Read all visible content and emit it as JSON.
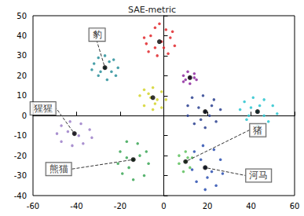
{
  "chart_data": {
    "type": "scatter",
    "title": "SAE-metric",
    "xlim": [
      -60,
      60
    ],
    "xticks": [
      -60,
      -40,
      -20,
      0,
      20,
      40,
      60
    ],
    "ylim": [
      -40,
      50
    ],
    "yticks": [
      -40,
      -30,
      -20,
      -10,
      0,
      10,
      20,
      30,
      40,
      50
    ],
    "grid": false,
    "series": [
      {
        "color": "#e0262a",
        "values": [
          [
            -8,
            36
          ],
          [
            -6,
            40
          ],
          [
            -4,
            44
          ],
          [
            -2,
            46
          ],
          [
            1,
            43
          ],
          [
            3,
            39
          ],
          [
            5,
            35
          ],
          [
            2,
            31
          ],
          [
            -3,
            30
          ],
          [
            -7,
            32
          ],
          [
            -1,
            37
          ],
          [
            -4,
            34
          ],
          [
            4,
            42
          ],
          [
            0,
            34
          ],
          [
            -9,
            39
          ]
        ]
      },
      {
        "color": "#2a8f9a",
        "values": [
          [
            -32,
            26
          ],
          [
            -30,
            29
          ],
          [
            -27,
            30
          ],
          [
            -23,
            28
          ],
          [
            -21,
            24
          ],
          [
            -22,
            20
          ],
          [
            -26,
            18
          ],
          [
            -30,
            20
          ],
          [
            -33,
            23
          ],
          [
            -27,
            24
          ],
          [
            -25,
            27
          ],
          [
            -29,
            22
          ],
          [
            -24,
            22
          ]
        ]
      },
      {
        "color": "#8e2a9f",
        "values": [
          [
            9,
            20
          ],
          [
            11,
            22
          ],
          [
            14,
            21
          ],
          [
            15,
            18
          ],
          [
            12,
            16
          ],
          [
            9,
            17
          ],
          [
            12,
            19
          ],
          [
            10,
            18
          ],
          [
            14,
            19
          ]
        ]
      },
      {
        "color": "#d4d42a",
        "values": [
          [
            -11,
            10
          ],
          [
            -9,
            13
          ],
          [
            -5,
            14
          ],
          [
            -1,
            12
          ],
          [
            1,
            8
          ],
          [
            -1,
            4
          ],
          [
            -5,
            3
          ],
          [
            -9,
            5
          ],
          [
            -6,
            9
          ],
          [
            -3,
            8
          ],
          [
            -7,
            11
          ],
          [
            -4,
            6
          ]
        ]
      },
      {
        "color": "#2ac4cf",
        "values": [
          [
            35,
            3
          ],
          [
            37,
            7
          ],
          [
            41,
            9
          ],
          [
            46,
            8
          ],
          [
            50,
            5
          ],
          [
            52,
            1
          ],
          [
            48,
            -3
          ],
          [
            43,
            -5
          ],
          [
            38,
            -2
          ],
          [
            43,
            2
          ],
          [
            40,
            4
          ],
          [
            46,
            0
          ],
          [
            44,
            5
          ],
          [
            39,
            0
          ]
        ]
      },
      {
        "color": "#2a3f8f",
        "values": [
          [
            11,
            5
          ],
          [
            13,
            9
          ],
          [
            18,
            10
          ],
          [
            23,
            8
          ],
          [
            26,
            3
          ],
          [
            24,
            -3
          ],
          [
            19,
            -6
          ],
          [
            14,
            -4
          ],
          [
            11,
            0
          ],
          [
            19,
            2
          ],
          [
            16,
            4
          ],
          [
            21,
            0
          ],
          [
            17,
            -2
          ],
          [
            22,
            5
          ]
        ]
      },
      {
        "color": "#9b7ec8",
        "values": [
          [
            -49,
            -9
          ],
          [
            -47,
            -5
          ],
          [
            -43,
            -3
          ],
          [
            -38,
            -4
          ],
          [
            -34,
            -7
          ],
          [
            -33,
            -11
          ],
          [
            -37,
            -14
          ],
          [
            -42,
            -15
          ],
          [
            -47,
            -13
          ],
          [
            -41,
            -9
          ],
          [
            -44,
            -8
          ],
          [
            -39,
            -10
          ]
        ]
      },
      {
        "color": "#3aa655",
        "values": [
          [
            -20,
            -18
          ],
          [
            -17,
            -13
          ],
          [
            -12,
            -14
          ],
          [
            -8,
            -18
          ],
          [
            -7,
            -24
          ],
          [
            -9,
            -30
          ],
          [
            -14,
            -32
          ],
          [
            -19,
            -29
          ],
          [
            -21,
            -24
          ],
          [
            -14,
            -22
          ],
          [
            -16,
            -26
          ],
          [
            -11,
            -20
          ],
          [
            -17,
            -21
          ]
        ]
      },
      {
        "color": "#5cbf5c",
        "values": [
          [
            7,
            -20
          ],
          [
            10,
            -18
          ],
          [
            13,
            -21
          ],
          [
            12,
            -26
          ],
          [
            9,
            -28
          ],
          [
            7,
            -24
          ],
          [
            10,
            -23
          ],
          [
            11,
            -21
          ]
        ]
      },
      {
        "color": "#2a4fb0",
        "values": [
          [
            14,
            -18
          ],
          [
            18,
            -15
          ],
          [
            23,
            -17
          ],
          [
            26,
            -22
          ],
          [
            27,
            -29
          ],
          [
            24,
            -35
          ],
          [
            19,
            -37
          ],
          [
            15,
            -33
          ],
          [
            13,
            -27
          ],
          [
            19,
            -26
          ],
          [
            17,
            -22
          ],
          [
            22,
            -28
          ],
          [
            20,
            -31
          ]
        ]
      }
    ],
    "centroids": [
      {
        "x": -2,
        "y": 37
      },
      {
        "x": -27,
        "y": 24,
        "label": "豹"
      },
      {
        "x": 12,
        "y": 19
      },
      {
        "x": -5,
        "y": 9
      },
      {
        "x": 43,
        "y": 2
      },
      {
        "x": 19,
        "y": 2
      },
      {
        "x": -41,
        "y": -9,
        "label": "猩猩"
      },
      {
        "x": -14,
        "y": -22,
        "label": "熊猫"
      },
      {
        "x": 10,
        "y": -23,
        "label": "猪"
      },
      {
        "x": 19,
        "y": -26,
        "label": "河马"
      }
    ]
  }
}
